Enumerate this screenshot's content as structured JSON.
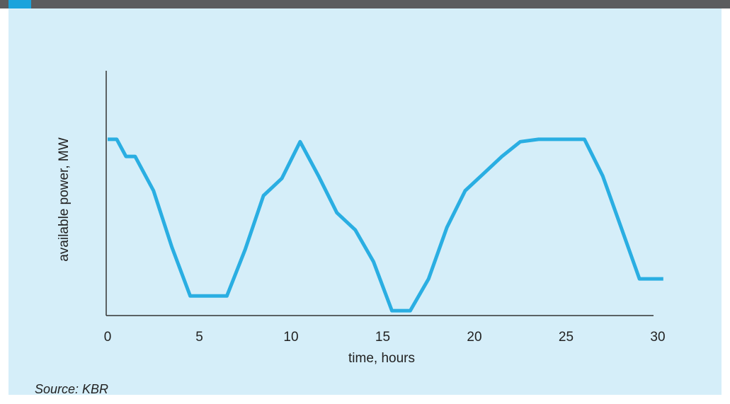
{
  "colors": {
    "header_bar": "#5b5c5e",
    "header_accent": "#1aa3dc",
    "panel_bg": "#d5eef9",
    "line": "#2aaee2",
    "axis": "#333333",
    "text": "#222222"
  },
  "source": "Source: KBR",
  "chart_data": {
    "type": "line",
    "title": "",
    "xlabel": "time, hours",
    "ylabel": "available power, MW",
    "xlim": [
      0,
      30
    ],
    "ylim": [
      0,
      1
    ],
    "xticks": [
      0,
      5,
      10,
      15,
      20,
      25,
      30
    ],
    "y_tick_labels_shown": false,
    "grid": false,
    "series": [
      {
        "x": [
          0,
          0.5,
          1,
          1.5,
          2.5,
          3.5,
          4.5,
          5.5,
          6.5,
          7.5,
          8.5,
          9.5,
          10.5,
          11.5,
          12.5,
          13.5,
          14.5,
          15.5,
          16.5,
          17.5,
          18.5,
          19.5,
          20.5,
          21.5,
          22.5,
          23.5,
          24.5,
          26,
          27,
          28,
          29,
          30.3
        ],
        "y": [
          0.72,
          0.72,
          0.65,
          0.65,
          0.51,
          0.28,
          0.08,
          0.08,
          0.08,
          0.27,
          0.49,
          0.56,
          0.71,
          0.57,
          0.42,
          0.35,
          0.22,
          0.02,
          0.02,
          0.15,
          0.36,
          0.51,
          0.58,
          0.65,
          0.71,
          0.72,
          0.72,
          0.72,
          0.57,
          0.36,
          0.15,
          0.15
        ]
      }
    ]
  }
}
